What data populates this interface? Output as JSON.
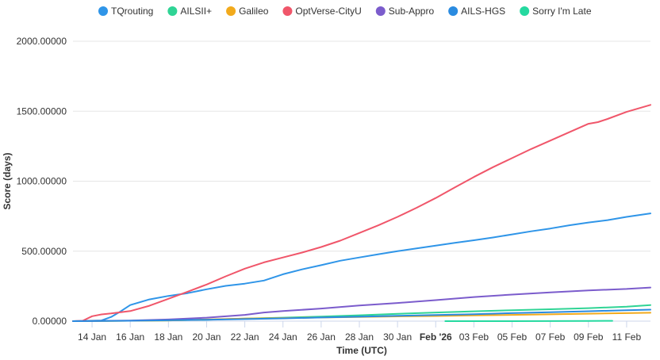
{
  "chart_data": {
    "type": "line",
    "xlabel": "Time (UTC)",
    "ylabel": "Score (days)",
    "ylim": [
      0,
      2000
    ],
    "xlim": [
      "2026-01-13T00:00",
      "2026-02-12T06:00"
    ],
    "grid": {
      "horizontal": true,
      "vertical": false
    },
    "legend_position": "top",
    "y_ticks": [
      "0.00000",
      "500.00000",
      "1000.00000",
      "1500.00000",
      "2000.00000"
    ],
    "y_tick_values": [
      0,
      500,
      1000,
      1500,
      2000
    ],
    "x_ticks": [
      {
        "date": "2026-01-14",
        "label": "14 Jan",
        "bold": false
      },
      {
        "date": "2026-01-16",
        "label": "16 Jan",
        "bold": false
      },
      {
        "date": "2026-01-18",
        "label": "18 Jan",
        "bold": false
      },
      {
        "date": "2026-01-20",
        "label": "20 Jan",
        "bold": false
      },
      {
        "date": "2026-01-22",
        "label": "22 Jan",
        "bold": false
      },
      {
        "date": "2026-01-24",
        "label": "24 Jan",
        "bold": false
      },
      {
        "date": "2026-01-26",
        "label": "26 Jan",
        "bold": false
      },
      {
        "date": "2026-01-28",
        "label": "28 Jan",
        "bold": false
      },
      {
        "date": "2026-01-30",
        "label": "30 Jan",
        "bold": false
      },
      {
        "date": "2026-02-01",
        "label": "Feb '26",
        "bold": true
      },
      {
        "date": "2026-02-03",
        "label": "03 Feb",
        "bold": false
      },
      {
        "date": "2026-02-05",
        "label": "05 Feb",
        "bold": false
      },
      {
        "date": "2026-02-07",
        "label": "07 Feb",
        "bold": false
      },
      {
        "date": "2026-02-09",
        "label": "09 Feb",
        "bold": false
      },
      {
        "date": "2026-02-11",
        "label": "11 Feb",
        "bold": false
      }
    ],
    "series": [
      {
        "name": "TQrouting",
        "color": "#2f95e8",
        "points": [
          [
            "2026-01-13T00:00",
            0
          ],
          [
            "2026-01-14T12:00",
            5
          ],
          [
            "2026-01-15T00:00",
            30
          ],
          [
            "2026-01-15T12:00",
            70
          ],
          [
            "2026-01-16T00:00",
            115
          ],
          [
            "2026-01-17T00:00",
            155
          ],
          [
            "2026-01-18T00:00",
            180
          ],
          [
            "2026-01-19T00:00",
            200
          ],
          [
            "2026-01-20T00:00",
            228
          ],
          [
            "2026-01-21T00:00",
            252
          ],
          [
            "2026-01-22T00:00",
            268
          ],
          [
            "2026-01-23T00:00",
            290
          ],
          [
            "2026-01-24T00:00",
            335
          ],
          [
            "2026-01-25T00:00",
            370
          ],
          [
            "2026-01-26T00:00",
            400
          ],
          [
            "2026-01-27T00:00",
            432
          ],
          [
            "2026-01-28T00:00",
            455
          ],
          [
            "2026-01-29T00:00",
            478
          ],
          [
            "2026-01-30T00:00",
            500
          ],
          [
            "2026-01-31T00:00",
            520
          ],
          [
            "2026-02-01T00:00",
            540
          ],
          [
            "2026-02-02T00:00",
            560
          ],
          [
            "2026-02-03T00:00",
            578
          ],
          [
            "2026-02-04T00:00",
            598
          ],
          [
            "2026-02-05T00:00",
            620
          ],
          [
            "2026-02-06T00:00",
            642
          ],
          [
            "2026-02-07T00:00",
            662
          ],
          [
            "2026-02-08T00:00",
            685
          ],
          [
            "2026-02-09T00:00",
            705
          ],
          [
            "2026-02-10T00:00",
            722
          ],
          [
            "2026-02-11T00:00",
            745
          ],
          [
            "2026-02-12T06:00",
            770
          ]
        ]
      },
      {
        "name": "AILSII+",
        "color": "#2fd495",
        "points": [
          [
            "2026-01-13T00:00",
            0
          ],
          [
            "2026-01-18T00:00",
            5
          ],
          [
            "2026-01-20T00:00",
            10
          ],
          [
            "2026-01-22T00:00",
            18
          ],
          [
            "2026-01-24T00:00",
            25
          ],
          [
            "2026-01-26T00:00",
            33
          ],
          [
            "2026-01-28T00:00",
            42
          ],
          [
            "2026-01-30T00:00",
            52
          ],
          [
            "2026-02-01T00:00",
            62
          ],
          [
            "2026-02-03T00:00",
            70
          ],
          [
            "2026-02-05T00:00",
            78
          ],
          [
            "2026-02-07T00:00",
            85
          ],
          [
            "2026-02-09T00:00",
            93
          ],
          [
            "2026-02-11T00:00",
            103
          ],
          [
            "2026-02-12T06:00",
            115
          ]
        ]
      },
      {
        "name": "Galileo",
        "color": "#f2aa1c",
        "points": [
          [
            "2026-01-13T00:00",
            0
          ],
          [
            "2026-01-18T00:00",
            5
          ],
          [
            "2026-01-20T00:00",
            12
          ],
          [
            "2026-01-22T00:00",
            18
          ],
          [
            "2026-01-24T00:00",
            22
          ],
          [
            "2026-01-26T00:00",
            26
          ],
          [
            "2026-01-28T00:00",
            30
          ],
          [
            "2026-01-30T00:00",
            34
          ],
          [
            "2026-02-01T00:00",
            37
          ],
          [
            "2026-02-03T00:00",
            41
          ],
          [
            "2026-02-05T00:00",
            45
          ],
          [
            "2026-02-07T00:00",
            49
          ],
          [
            "2026-02-09T00:00",
            53
          ],
          [
            "2026-02-11T00:00",
            57
          ],
          [
            "2026-02-12T06:00",
            60
          ]
        ]
      },
      {
        "name": "OptVerse-CityU",
        "color": "#f0566a",
        "points": [
          [
            "2026-01-13T00:00",
            0
          ],
          [
            "2026-01-13T12:00",
            2
          ],
          [
            "2026-01-14T00:00",
            35
          ],
          [
            "2026-01-14T12:00",
            48
          ],
          [
            "2026-01-15T00:00",
            55
          ],
          [
            "2026-01-16T00:00",
            72
          ],
          [
            "2026-01-17T00:00",
            110
          ],
          [
            "2026-01-18T00:00",
            160
          ],
          [
            "2026-01-19T00:00",
            210
          ],
          [
            "2026-01-20T00:00",
            262
          ],
          [
            "2026-01-21T00:00",
            320
          ],
          [
            "2026-01-22T00:00",
            375
          ],
          [
            "2026-01-23T00:00",
            420
          ],
          [
            "2026-01-24T00:00",
            455
          ],
          [
            "2026-01-25T00:00",
            490
          ],
          [
            "2026-01-26T00:00",
            530
          ],
          [
            "2026-01-27T00:00",
            575
          ],
          [
            "2026-01-28T00:00",
            630
          ],
          [
            "2026-01-29T00:00",
            685
          ],
          [
            "2026-01-30T00:00",
            745
          ],
          [
            "2026-01-31T00:00",
            810
          ],
          [
            "2026-02-01T00:00",
            880
          ],
          [
            "2026-02-02T00:00",
            955
          ],
          [
            "2026-02-03T00:00",
            1030
          ],
          [
            "2026-02-04T00:00",
            1100
          ],
          [
            "2026-02-05T00:00",
            1165
          ],
          [
            "2026-02-06T00:00",
            1230
          ],
          [
            "2026-02-07T00:00",
            1290
          ],
          [
            "2026-02-08T00:00",
            1350
          ],
          [
            "2026-02-09T00:00",
            1410
          ],
          [
            "2026-02-09T12:00",
            1422
          ],
          [
            "2026-02-10T00:00",
            1445
          ],
          [
            "2026-02-11T00:00",
            1495
          ],
          [
            "2026-02-12T06:00",
            1545
          ]
        ]
      },
      {
        "name": "Sub-Appro",
        "color": "#7b5ccc",
        "points": [
          [
            "2026-01-13T00:00",
            0
          ],
          [
            "2026-01-16T00:00",
            4
          ],
          [
            "2026-01-18T00:00",
            12
          ],
          [
            "2026-01-20T00:00",
            25
          ],
          [
            "2026-01-22T00:00",
            45
          ],
          [
            "2026-01-23T00:00",
            62
          ],
          [
            "2026-01-24T00:00",
            72
          ],
          [
            "2026-01-26T00:00",
            90
          ],
          [
            "2026-01-28T00:00",
            112
          ],
          [
            "2026-01-30T00:00",
            130
          ],
          [
            "2026-02-01T00:00",
            150
          ],
          [
            "2026-02-03T00:00",
            172
          ],
          [
            "2026-02-05T00:00",
            190
          ],
          [
            "2026-02-07T00:00",
            205
          ],
          [
            "2026-02-09T00:00",
            220
          ],
          [
            "2026-02-11T00:00",
            230
          ],
          [
            "2026-02-12T06:00",
            240
          ]
        ]
      },
      {
        "name": "AILS-HGS",
        "color": "#2a8be0",
        "points": [
          [
            "2026-01-13T00:00",
            0
          ],
          [
            "2026-01-16T00:00",
            3
          ],
          [
            "2026-01-18T00:00",
            6
          ],
          [
            "2026-01-20T00:00",
            10
          ],
          [
            "2026-01-22T00:00",
            15
          ],
          [
            "2026-01-24T00:00",
            20
          ],
          [
            "2026-01-26T00:00",
            26
          ],
          [
            "2026-01-28T00:00",
            32
          ],
          [
            "2026-01-30T00:00",
            38
          ],
          [
            "2026-02-01T00:00",
            44
          ],
          [
            "2026-02-03T00:00",
            50
          ],
          [
            "2026-02-05T00:00",
            57
          ],
          [
            "2026-02-07T00:00",
            64
          ],
          [
            "2026-02-09T00:00",
            71
          ],
          [
            "2026-02-11T00:00",
            78
          ],
          [
            "2026-02-12T06:00",
            82
          ]
        ]
      },
      {
        "name": "Sorry I'm Late",
        "color": "#25d9a0",
        "points": [
          [
            "2026-02-01T12:00",
            0
          ],
          [
            "2026-02-05T00:00",
            0
          ],
          [
            "2026-02-09T00:00",
            1
          ],
          [
            "2026-02-10T06:00",
            2
          ]
        ]
      }
    ]
  }
}
